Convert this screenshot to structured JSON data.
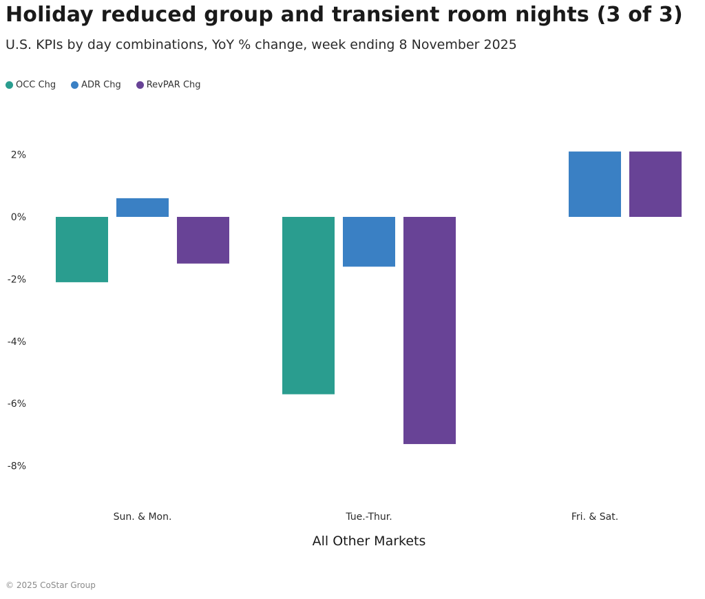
{
  "title": "Holiday reduced group and transient room nights (3 of 3)",
  "subtitle": "U.S. KPIs by day combinations, YoY % change, week ending 8 November 2025",
  "legend": [
    {
      "label": "OCC Chg",
      "color": "#2a9d8f"
    },
    {
      "label": "ADR Chg",
      "color": "#3a80c4"
    },
    {
      "label": "RevPAR Chg",
      "color": "#684396"
    }
  ],
  "footer": "© 2025 CoStar Group",
  "chart_data": {
    "type": "bar",
    "title": "Holiday reduced group and transient room nights (3 of 3)",
    "xlabel": "All Other Markets",
    "ylabel": "",
    "categories": [
      "Sun. & Mon.",
      "Tue.-Thur.",
      "Fri. & Sat."
    ],
    "series": [
      {
        "name": "OCC Chg",
        "color": "#2a9d8f",
        "values": [
          -2.1,
          -5.7,
          null
        ]
      },
      {
        "name": "ADR Chg",
        "color": "#3a80c4",
        "values": [
          0.6,
          -1.6,
          2.1
        ]
      },
      {
        "name": "RevPAR Chg",
        "color": "#684396",
        "values": [
          -1.5,
          -7.3,
          2.1
        ]
      }
    ],
    "ylim": [
      -8,
      2
    ],
    "yticks": [
      2,
      0,
      -2,
      -4,
      -6,
      -8
    ],
    "ytick_labels": [
      "2%",
      "0%",
      "-2%",
      "-4%",
      "-6%",
      "-8%"
    ],
    "grid": false
  }
}
